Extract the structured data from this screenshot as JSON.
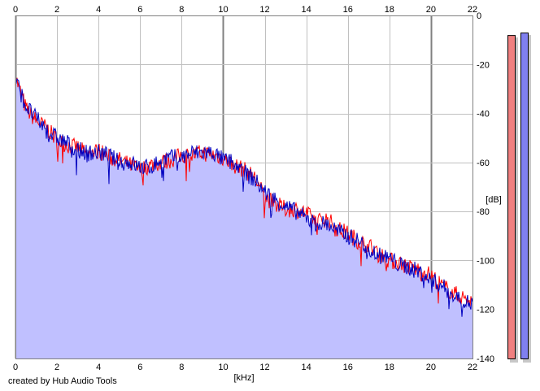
{
  "credit_text": "created by Hub Audio Tools",
  "colors": {
    "fill": "#c0c0ff",
    "left_channel": "#ff0000",
    "right_channel": "#0000c0",
    "grid_major": "#808080",
    "grid_minor": "#c0c0c0",
    "meter_left": "#f08080",
    "meter_right": "#8080f0"
  },
  "chart_data": {
    "type": "line",
    "xlabel": "[kHz]",
    "ylabel": "[dB]",
    "xlim": [
      0,
      22
    ],
    "ylim": [
      -140,
      0
    ],
    "x_ticks": [
      "0",
      "2",
      "4",
      "6",
      "8",
      "10",
      "12",
      "14",
      "16",
      "18",
      "20",
      "22"
    ],
    "y_ticks": [
      "0",
      "-20",
      "-40",
      "-60",
      "-80",
      "-100",
      "-120",
      "-140"
    ],
    "grid": true,
    "x": [
      0,
      0.5,
      1,
      1.5,
      2,
      2.5,
      3,
      3.5,
      4,
      4.5,
      5,
      5.5,
      6,
      6.5,
      7,
      7.5,
      8,
      8.5,
      9,
      9.5,
      10,
      10.5,
      11,
      11.5,
      12,
      12.5,
      13,
      13.5,
      14,
      14.5,
      15,
      15.5,
      16,
      16.5,
      17,
      17.5,
      18,
      18.5,
      19,
      19.5,
      20,
      20.5,
      21,
      21.5,
      22
    ],
    "series": [
      {
        "values": [
          -25,
          -38,
          -43,
          -46,
          -51,
          -53,
          -54,
          -57,
          -55,
          -58,
          -59,
          -61,
          -63,
          -61,
          -60,
          -59,
          -57,
          -57,
          -56,
          -57,
          -58,
          -61,
          -63,
          -66,
          -74,
          -77,
          -79,
          -79,
          -81,
          -84,
          -83,
          -87,
          -89,
          -92,
          -94,
          -97,
          -100,
          -101,
          -103,
          -104,
          -106,
          -110,
          -113,
          -115,
          -117
        ]
      },
      {
        "values": [
          -26,
          -37,
          -42,
          -47,
          -50,
          -52,
          -55,
          -56,
          -56,
          -57,
          -60,
          -60,
          -62,
          -62,
          -59,
          -58,
          -58,
          -56,
          -56,
          -56,
          -59,
          -60,
          -64,
          -67,
          -72,
          -75,
          -78,
          -80,
          -83,
          -85,
          -85,
          -88,
          -90,
          -92,
          -95,
          -98,
          -99,
          -102,
          -103,
          -105,
          -108,
          -110,
          -114,
          -116,
          -118
        ]
      }
    ],
    "meters": [
      {
        "channel": "L",
        "value": -8
      },
      {
        "channel": "R",
        "value": -7
      }
    ]
  }
}
